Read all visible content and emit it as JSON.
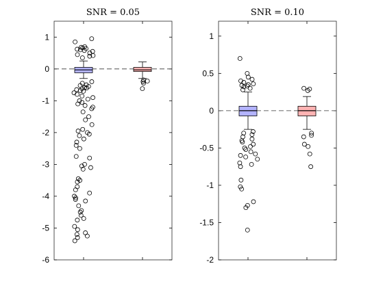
{
  "chart_data": [
    {
      "type": "box",
      "title": "SNR = 0.05",
      "ylim": [
        -6,
        1.5
      ],
      "yticks": [
        1,
        0,
        -1,
        -2,
        -3,
        -4,
        -5,
        -6
      ],
      "ytick_labels": [
        "1",
        "0",
        "-1",
        "-2",
        "-3",
        "-4",
        "-5",
        "-6"
      ],
      "reference_line": 0,
      "boxes": [
        {
          "color": "#b3b3ff",
          "median": -0.03,
          "q1": -0.12,
          "q3": 0.05,
          "whisker_low": -0.3,
          "whisker_high": 0.25,
          "outliers": [
            0.95,
            0.85,
            0.7,
            0.68,
            0.66,
            0.64,
            0.62,
            0.6,
            0.58,
            0.55,
            0.5,
            0.45,
            0.42,
            0.4,
            0.35,
            -0.4,
            -0.45,
            -0.5,
            -0.52,
            -0.55,
            -0.58,
            -0.6,
            -0.62,
            -0.65,
            -0.68,
            -0.7,
            -0.75,
            -0.8,
            -0.85,
            -0.9,
            -0.95,
            -1.0,
            -1.05,
            -1.1,
            -1.15,
            -1.2,
            -1.25,
            -1.35,
            -1.5,
            -1.6,
            -1.75,
            -1.9,
            -1.95,
            -2.0,
            -2.05,
            -2.1,
            -2.2,
            -2.3,
            -2.4,
            -2.5,
            -2.75,
            -2.8,
            -3.0,
            -3.05,
            -3.1,
            -3.15,
            -3.45,
            -3.5,
            -3.55,
            -3.7,
            -3.8,
            -3.9,
            -4.0,
            -4.05,
            -4.1,
            -4.15,
            -4.3,
            -4.45,
            -4.5,
            -4.6,
            -4.7,
            -4.75,
            -4.95,
            -5.05,
            -5.15,
            -5.2,
            -5.25,
            -5.3,
            -5.4
          ]
        },
        {
          "color": "#ffb3b3",
          "median": -0.03,
          "q1": -0.08,
          "q3": 0.05,
          "whisker_low": -0.3,
          "whisker_high": 0.22,
          "outliers": [
            -0.35,
            -0.38,
            -0.4,
            -0.45,
            -0.62
          ]
        }
      ]
    },
    {
      "type": "box",
      "title": "SNR = 0.10",
      "ylim": [
        -2,
        1.2
      ],
      "yticks": [
        1,
        0.5,
        0,
        -0.5,
        -1,
        -1.5,
        -2
      ],
      "ytick_labels": [
        "1",
        "0.5",
        "0",
        "-0.5",
        "-1",
        "-1.5",
        "-2"
      ],
      "reference_line": 0,
      "boxes": [
        {
          "color": "#b3b3ff",
          "median": 0.0,
          "q1": -0.07,
          "q3": 0.06,
          "whisker_low": -0.25,
          "whisker_high": 0.25,
          "outliers": [
            0.7,
            0.5,
            0.45,
            0.42,
            0.4,
            0.38,
            0.36,
            0.35,
            0.34,
            0.33,
            0.32,
            0.3,
            0.28,
            -0.28,
            -0.3,
            -0.32,
            -0.35,
            -0.38,
            -0.4,
            -0.42,
            -0.45,
            -0.48,
            -0.5,
            -0.52,
            -0.55,
            -0.58,
            -0.6,
            -0.62,
            -0.65,
            -0.7,
            -0.72,
            -0.75,
            -0.93,
            -1.02,
            -1.05,
            -1.22,
            -1.27,
            -1.3,
            -1.6
          ]
        },
        {
          "color": "#ffb3b3",
          "median": 0.0,
          "q1": -0.07,
          "q3": 0.06,
          "whisker_low": -0.25,
          "whisker_high": 0.19,
          "outliers": [
            0.3,
            0.29,
            0.27,
            -0.3,
            -0.33,
            -0.35,
            -0.45,
            -0.48,
            -0.58,
            -0.75
          ]
        }
      ]
    }
  ]
}
